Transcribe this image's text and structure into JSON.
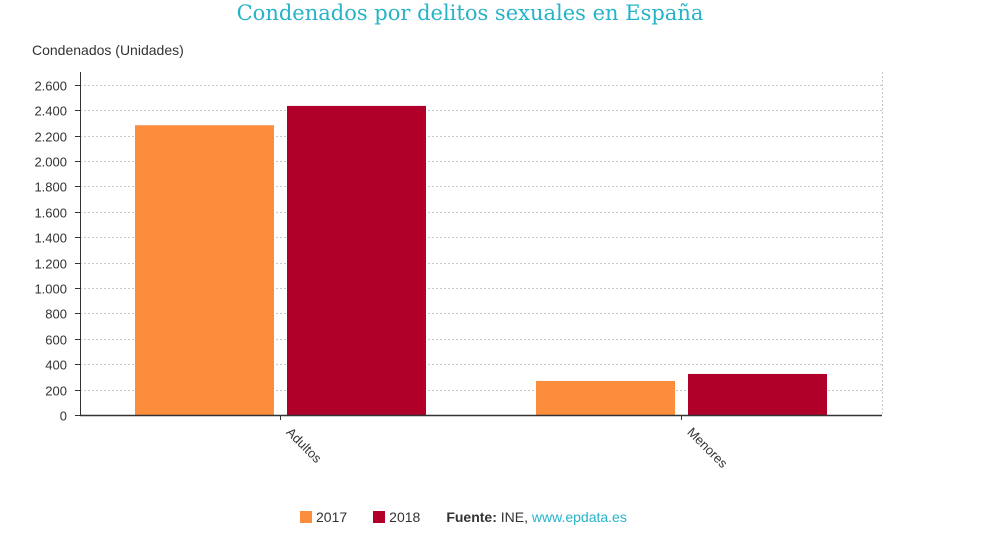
{
  "colors": {
    "title": "#26b3c8",
    "grid": "#c8c8c8",
    "axis": "#333333",
    "link": "#26b3c8"
  },
  "chart_data": {
    "type": "bar",
    "title": "Condenados por delitos sexuales en España",
    "ylabel": "Condenados (Unidades)",
    "xlabel": "",
    "categories": [
      "Adultos",
      "Menores"
    ],
    "series": [
      {
        "name": "2017",
        "color": "#fb8d3d",
        "values": [
          2281,
          268
        ]
      },
      {
        "name": "2018",
        "color": "#b0002a",
        "values": [
          2433,
          323
        ]
      }
    ],
    "ylim": [
      0,
      2700
    ],
    "yticks": [
      0,
      200,
      400,
      600,
      800,
      1000,
      1200,
      1400,
      1600,
      1800,
      2000,
      2200,
      2400,
      2600
    ],
    "ytick_labels": [
      "0",
      "200",
      "400",
      "600",
      "800",
      "1.000",
      "1.200",
      "1.400",
      "1.600",
      "1.800",
      "2.000",
      "2.200",
      "2.400",
      "2.600"
    ],
    "grid": true,
    "legend_position": "bottom"
  },
  "source": {
    "label": "Fuente:",
    "value": " INE, ",
    "link": "www.epdata.es"
  }
}
